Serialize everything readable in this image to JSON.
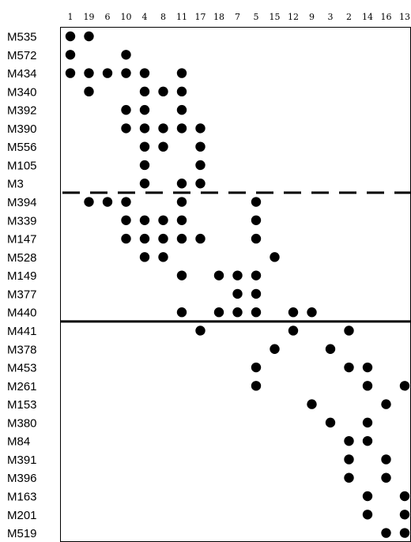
{
  "chart_data": {
    "type": "scatter",
    "columns": [
      "1",
      "19",
      "6",
      "10",
      "4",
      "8",
      "11",
      "17",
      "18",
      "7",
      "5",
      "15",
      "12",
      "9",
      "3",
      "2",
      "14",
      "16",
      "13"
    ],
    "rows": [
      "M535",
      "M572",
      "M434",
      "M340",
      "M392",
      "M390",
      "M556",
      "M105",
      "M3",
      "M394",
      "M339",
      "M147",
      "M528",
      "M149",
      "M377",
      "M440",
      "M441",
      "M378",
      "M453",
      "M261",
      "M153",
      "M380",
      "M84",
      "M391",
      "M396",
      "M163",
      "M201",
      "M519"
    ],
    "points": [
      {
        "row": "M535",
        "cols": [
          "1",
          "19"
        ]
      },
      {
        "row": "M572",
        "cols": [
          "1",
          "10"
        ]
      },
      {
        "row": "M434",
        "cols": [
          "1",
          "19",
          "6",
          "10",
          "4",
          "11"
        ]
      },
      {
        "row": "M340",
        "cols": [
          "19",
          "4",
          "8",
          "11"
        ]
      },
      {
        "row": "M392",
        "cols": [
          "10",
          "4",
          "11"
        ]
      },
      {
        "row": "M390",
        "cols": [
          "10",
          "4",
          "8",
          "11",
          "17"
        ]
      },
      {
        "row": "M556",
        "cols": [
          "4",
          "8",
          "17"
        ]
      },
      {
        "row": "M105",
        "cols": [
          "4",
          "17"
        ]
      },
      {
        "row": "M3",
        "cols": [
          "4",
          "11",
          "17"
        ]
      },
      {
        "row": "M394",
        "cols": [
          "19",
          "6",
          "10",
          "11",
          "5"
        ]
      },
      {
        "row": "M339",
        "cols": [
          "10",
          "4",
          "8",
          "11",
          "5"
        ]
      },
      {
        "row": "M147",
        "cols": [
          "10",
          "4",
          "8",
          "11",
          "17",
          "5"
        ]
      },
      {
        "row": "M528",
        "cols": [
          "4",
          "8",
          "15"
        ]
      },
      {
        "row": "M149",
        "cols": [
          "11",
          "18",
          "7",
          "5"
        ]
      },
      {
        "row": "M377",
        "cols": [
          "7",
          "5"
        ]
      },
      {
        "row": "M440",
        "cols": [
          "11",
          "18",
          "7",
          "5",
          "12",
          "9"
        ]
      },
      {
        "row": "M441",
        "cols": [
          "17",
          "12",
          "2"
        ]
      },
      {
        "row": "M378",
        "cols": [
          "15",
          "3"
        ]
      },
      {
        "row": "M453",
        "cols": [
          "5",
          "2",
          "14"
        ]
      },
      {
        "row": "M261",
        "cols": [
          "5",
          "14",
          "13"
        ]
      },
      {
        "row": "M153",
        "cols": [
          "9",
          "16"
        ]
      },
      {
        "row": "M380",
        "cols": [
          "3",
          "14"
        ]
      },
      {
        "row": "M84",
        "cols": [
          "2",
          "14"
        ]
      },
      {
        "row": "M391",
        "cols": [
          "2",
          "16"
        ]
      },
      {
        "row": "M396",
        "cols": [
          "2",
          "16"
        ]
      },
      {
        "row": "M163",
        "cols": [
          "14",
          "13"
        ]
      },
      {
        "row": "M201",
        "cols": [
          "14",
          "13"
        ]
      },
      {
        "row": "M519",
        "cols": [
          "16",
          "13"
        ]
      }
    ],
    "separators": [
      {
        "between": [
          "M3",
          "M394"
        ],
        "style": "dashed"
      },
      {
        "between": [
          "M440",
          "M441"
        ],
        "style": "solid"
      }
    ],
    "marker_color": "#000000",
    "grid": false,
    "legend": "none"
  }
}
